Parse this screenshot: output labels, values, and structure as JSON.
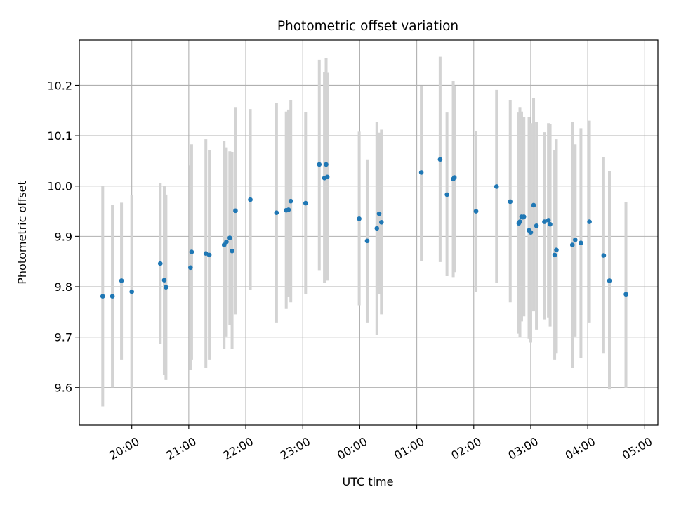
{
  "chart_data": {
    "type": "scatter",
    "title": "Photometric offset variation",
    "xlabel": "UTC time",
    "ylabel": "Photometric offset",
    "grid": true,
    "xlim": [
      -4.92,
      5.23
    ],
    "ylim": [
      9.525,
      10.29
    ],
    "x_unit": "hours relative to 00:00 UTC",
    "xticks": [
      {
        "value": -4,
        "label": "20:00"
      },
      {
        "value": -3,
        "label": "21:00"
      },
      {
        "value": -2,
        "label": "22:00"
      },
      {
        "value": -1,
        "label": "23:00"
      },
      {
        "value": 0,
        "label": "00:00"
      },
      {
        "value": 1,
        "label": "01:00"
      },
      {
        "value": 2,
        "label": "02:00"
      },
      {
        "value": 3,
        "label": "03:00"
      },
      {
        "value": 4,
        "label": "04:00"
      },
      {
        "value": 5,
        "label": "05:00"
      }
    ],
    "yticks": [
      {
        "value": 9.6,
        "label": "9.6"
      },
      {
        "value": 9.7,
        "label": "9.7"
      },
      {
        "value": 9.8,
        "label": "9.8"
      },
      {
        "value": 9.9,
        "label": "9.9"
      },
      {
        "value": 10.0,
        "label": "10.0"
      },
      {
        "value": 10.1,
        "label": "10.1"
      },
      {
        "value": 10.2,
        "label": "10.2"
      }
    ],
    "colors": {
      "point": "#1f77b4",
      "errorbar": "#d3d3d3",
      "grid": "#b0b0b0"
    },
    "points": [
      {
        "x": -4.51,
        "y": 9.781,
        "ymin": 9.562,
        "ymax": 10.0
      },
      {
        "x": -4.34,
        "y": 9.781,
        "ymin": 9.6,
        "ymax": 9.963
      },
      {
        "x": -4.18,
        "y": 9.812,
        "ymin": 9.655,
        "ymax": 9.967
      },
      {
        "x": -4.0,
        "y": 9.79,
        "ymin": 9.598,
        "ymax": 9.982
      },
      {
        "x": -3.5,
        "y": 9.846,
        "ymin": 9.687,
        "ymax": 10.006
      },
      {
        "x": -3.43,
        "y": 9.813,
        "ymin": 9.625,
        "ymax": 10.001
      },
      {
        "x": -3.4,
        "y": 9.799,
        "ymin": 9.616,
        "ymax": 9.983
      },
      {
        "x": -2.97,
        "y": 9.838,
        "ymin": 9.635,
        "ymax": 10.041
      },
      {
        "x": -2.95,
        "y": 9.869,
        "ymin": 9.655,
        "ymax": 10.083
      },
      {
        "x": -2.7,
        "y": 9.866,
        "ymin": 9.639,
        "ymax": 10.093
      },
      {
        "x": -2.64,
        "y": 9.863,
        "ymin": 9.655,
        "ymax": 10.071
      },
      {
        "x": -2.38,
        "y": 9.883,
        "ymin": 9.677,
        "ymax": 10.089
      },
      {
        "x": -2.34,
        "y": 9.889,
        "ymin": 9.701,
        "ymax": 10.077
      },
      {
        "x": -2.28,
        "y": 9.897,
        "ymin": 9.724,
        "ymax": 10.069
      },
      {
        "x": -2.24,
        "y": 9.871,
        "ymin": 9.677,
        "ymax": 10.068
      },
      {
        "x": -2.18,
        "y": 9.951,
        "ymin": 9.745,
        "ymax": 10.157
      },
      {
        "x": -1.92,
        "y": 9.973,
        "ymin": 9.794,
        "ymax": 10.153
      },
      {
        "x": -1.46,
        "y": 9.947,
        "ymin": 9.729,
        "ymax": 10.165
      },
      {
        "x": -1.29,
        "y": 9.952,
        "ymin": 9.757,
        "ymax": 10.148
      },
      {
        "x": -1.25,
        "y": 9.953,
        "ymin": 9.779,
        "ymax": 10.152
      },
      {
        "x": -1.21,
        "y": 9.97,
        "ymin": 9.769,
        "ymax": 10.17
      },
      {
        "x": -0.95,
        "y": 9.966,
        "ymin": 9.785,
        "ymax": 10.147
      },
      {
        "x": -0.71,
        "y": 10.043,
        "ymin": 9.833,
        "ymax": 10.251
      },
      {
        "x": -0.62,
        "y": 10.016,
        "ymin": 9.807,
        "ymax": 10.226
      },
      {
        "x": -0.59,
        "y": 10.043,
        "ymin": 9.833,
        "ymax": 10.255
      },
      {
        "x": -0.57,
        "y": 10.018,
        "ymin": 9.812,
        "ymax": 10.225
      },
      {
        "x": -0.01,
        "y": 9.935,
        "ymin": 9.763,
        "ymax": 10.108
      },
      {
        "x": 0.13,
        "y": 9.891,
        "ymin": 9.729,
        "ymax": 10.053
      },
      {
        "x": 0.3,
        "y": 9.916,
        "ymin": 9.705,
        "ymax": 10.127
      },
      {
        "x": 0.34,
        "y": 9.945,
        "ymin": 9.785,
        "ymax": 10.106
      },
      {
        "x": 0.38,
        "y": 9.928,
        "ymin": 9.745,
        "ymax": 10.112
      },
      {
        "x": 1.08,
        "y": 10.027,
        "ymin": 9.851,
        "ymax": 10.199
      },
      {
        "x": 1.41,
        "y": 10.053,
        "ymin": 9.849,
        "ymax": 10.257
      },
      {
        "x": 1.53,
        "y": 9.983,
        "ymin": 9.821,
        "ymax": 10.146
      },
      {
        "x": 1.64,
        "y": 10.014,
        "ymin": 9.819,
        "ymax": 10.209
      },
      {
        "x": 1.66,
        "y": 10.017,
        "ymin": 9.829,
        "ymax": 10.198
      },
      {
        "x": 2.04,
        "y": 9.95,
        "ymin": 9.789,
        "ymax": 10.11
      },
      {
        "x": 2.4,
        "y": 9.999,
        "ymin": 9.807,
        "ymax": 10.191
      },
      {
        "x": 2.64,
        "y": 9.969,
        "ymin": 9.769,
        "ymax": 10.17
      },
      {
        "x": 2.79,
        "y": 9.926,
        "ymin": 9.707,
        "ymax": 10.146
      },
      {
        "x": 2.81,
        "y": 9.929,
        "ymin": 9.7,
        "ymax": 10.157
      },
      {
        "x": 2.84,
        "y": 9.939,
        "ymin": 9.731,
        "ymax": 10.148
      },
      {
        "x": 2.86,
        "y": 9.938,
        "ymin": 9.745,
        "ymax": 10.131
      },
      {
        "x": 2.88,
        "y": 9.939,
        "ymin": 9.741,
        "ymax": 10.137
      },
      {
        "x": 2.97,
        "y": 9.912,
        "ymin": 9.697,
        "ymax": 10.137
      },
      {
        "x": 3.0,
        "y": 9.908,
        "ymin": 9.689,
        "ymax": 10.125
      },
      {
        "x": 3.05,
        "y": 9.962,
        "ymin": 9.751,
        "ymax": 10.175
      },
      {
        "x": 3.1,
        "y": 9.921,
        "ymin": 9.715,
        "ymax": 10.127
      },
      {
        "x": 3.24,
        "y": 9.929,
        "ymin": 9.735,
        "ymax": 10.107
      },
      {
        "x": 3.31,
        "y": 9.932,
        "ymin": 9.739,
        "ymax": 10.125
      },
      {
        "x": 3.34,
        "y": 9.924,
        "ymin": 9.721,
        "ymax": 10.123
      },
      {
        "x": 3.42,
        "y": 9.863,
        "ymin": 9.655,
        "ymax": 10.071
      },
      {
        "x": 3.45,
        "y": 9.873,
        "ymin": 9.667,
        "ymax": 10.093
      },
      {
        "x": 3.73,
        "y": 9.883,
        "ymin": 9.639,
        "ymax": 10.127
      },
      {
        "x": 3.78,
        "y": 9.893,
        "ymin": 9.701,
        "ymax": 10.083
      },
      {
        "x": 3.88,
        "y": 9.887,
        "ymin": 9.659,
        "ymax": 10.115
      },
      {
        "x": 4.03,
        "y": 9.929,
        "ymin": 9.729,
        "ymax": 10.13
      },
      {
        "x": 4.28,
        "y": 9.862,
        "ymin": 9.667,
        "ymax": 10.058
      },
      {
        "x": 4.38,
        "y": 9.812,
        "ymin": 9.596,
        "ymax": 10.029
      },
      {
        "x": 4.67,
        "y": 9.785,
        "ymin": 9.599,
        "ymax": 9.969
      }
    ]
  }
}
